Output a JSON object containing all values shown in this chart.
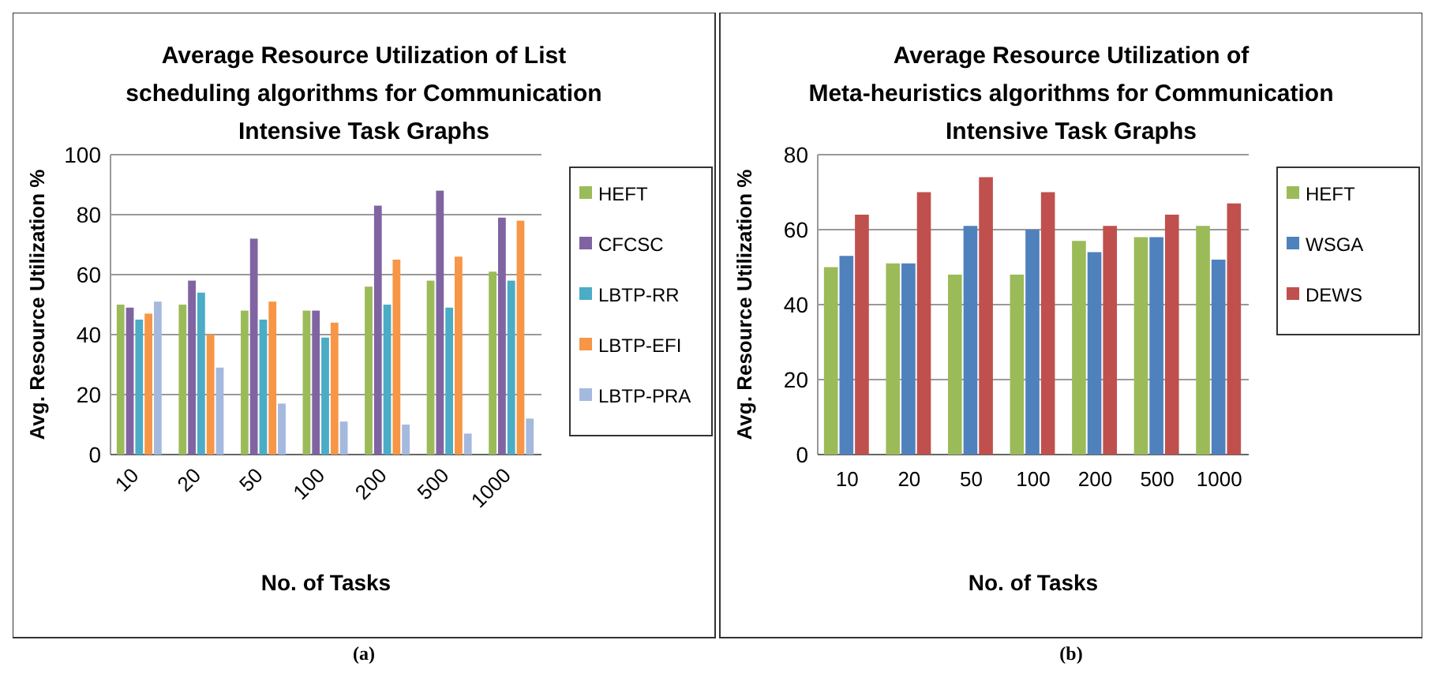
{
  "chart_data": [
    {
      "type": "bar",
      "title": "Average Resource Utilization of List scheduling algorithms for Communication Intensive Task Graphs",
      "xlabel": "No. of Tasks",
      "ylabel": "Avg. Resource Utilization %",
      "categories": [
        "10",
        "20",
        "50",
        "100",
        "200",
        "500",
        "1000"
      ],
      "series": [
        {
          "name": "HEFT",
          "color": "#9bbb59",
          "values": [
            50,
            50,
            48,
            48,
            56,
            58,
            61
          ]
        },
        {
          "name": "CFCSC",
          "color": "#8064a2",
          "values": [
            49,
            58,
            72,
            48,
            83,
            88,
            79
          ]
        },
        {
          "name": "LBTP-RR",
          "color": "#4bacc6",
          "values": [
            45,
            54,
            45,
            39,
            50,
            49,
            58
          ]
        },
        {
          "name": "LBTP-EFI",
          "color": "#f79646",
          "values": [
            47,
            40,
            51,
            44,
            65,
            66,
            78
          ]
        },
        {
          "name": "LBTP-PRA",
          "color": "#a5b9de",
          "values": [
            51,
            29,
            17,
            11,
            10,
            7,
            12
          ]
        }
      ],
      "ylim": [
        0,
        100
      ],
      "yticks": [
        0,
        20,
        40,
        60,
        80,
        100
      ],
      "grid": "y",
      "legend": "right",
      "annotations": [
        "(a)"
      ]
    },
    {
      "type": "bar",
      "title": "Average Resource Utilization of Meta-heuristics algorithms for Communication Intensive Task Graphs",
      "xlabel": "No. of Tasks",
      "ylabel": "Avg. Resource Utilization %",
      "categories": [
        "10",
        "20",
        "50",
        "100",
        "200",
        "500",
        "1000"
      ],
      "series": [
        {
          "name": "HEFT",
          "color": "#9bbb59",
          "values": [
            50,
            51,
            48,
            48,
            57,
            58,
            61
          ]
        },
        {
          "name": "WSGA",
          "color": "#4f81bd",
          "values": [
            53,
            51,
            61,
            60,
            54,
            58,
            52
          ]
        },
        {
          "name": "DEWS",
          "color": "#c0504d",
          "values": [
            64,
            70,
            74,
            70,
            61,
            64,
            67
          ]
        }
      ],
      "ylim": [
        0,
        80
      ],
      "yticks": [
        0,
        20,
        40,
        60,
        80
      ],
      "grid": "y",
      "legend": "right",
      "annotations": [
        "(b)"
      ]
    }
  ]
}
